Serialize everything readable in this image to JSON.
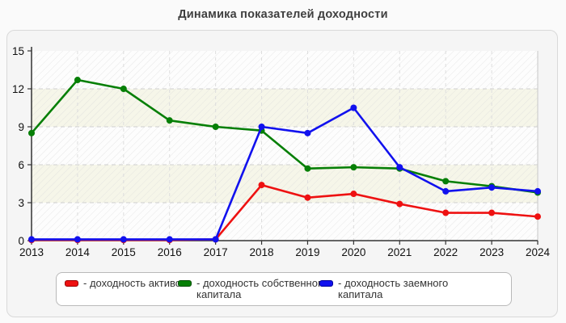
{
  "page": {
    "title": "Динамика показателей доходности"
  },
  "chart_data": {
    "type": "line",
    "title": "Динамика показателей доходности",
    "xlabel": "",
    "ylabel": "",
    "x": [
      2013,
      2014,
      2015,
      2016,
      2017,
      2018,
      2019,
      2020,
      2021,
      2022,
      2023,
      2024
    ],
    "x_tick_labels": [
      "2013",
      "2014",
      "2015",
      "2016",
      "2017",
      "2018",
      "2019",
      "2020",
      "2021",
      "2022",
      "2023",
      "2024"
    ],
    "ylim": [
      0,
      15
    ],
    "yticks": [
      0,
      3,
      6,
      9,
      12,
      15
    ],
    "grid": true,
    "grid_style": "dashed",
    "plot_band_colors": [
      "#fdfdfd",
      "#f6f6e9"
    ],
    "hatch_pattern": "diagonal-45",
    "legend_position": "bottom",
    "series": [
      {
        "name": "доходность активов",
        "color": "#ee1111",
        "values": [
          0.05,
          0.05,
          0.05,
          0.05,
          0.1,
          4.4,
          3.4,
          3.7,
          2.9,
          2.2,
          2.2,
          1.9
        ]
      },
      {
        "name": "доходность собственного капитала",
        "color": "#067f06",
        "values": [
          8.5,
          12.7,
          12.0,
          9.5,
          9.0,
          8.7,
          5.7,
          5.8,
          5.7,
          4.7,
          4.3,
          3.8
        ]
      },
      {
        "name": "доходность заемного капитала",
        "color": "#1111ee",
        "values": [
          0.1,
          0.1,
          0.1,
          0.1,
          0.1,
          9.0,
          8.5,
          10.5,
          5.8,
          3.9,
          4.2,
          3.9
        ]
      }
    ],
    "legend": [
      {
        "label": "- доходность активов",
        "color": "#ee1111",
        "border": "#990000"
      },
      {
        "label": "- доходность собственного капитала",
        "color": "#067f06",
        "border": "#044d04"
      },
      {
        "label": "- доходность заемного капитала",
        "color": "#1111ee",
        "border": "#000099"
      }
    ]
  }
}
